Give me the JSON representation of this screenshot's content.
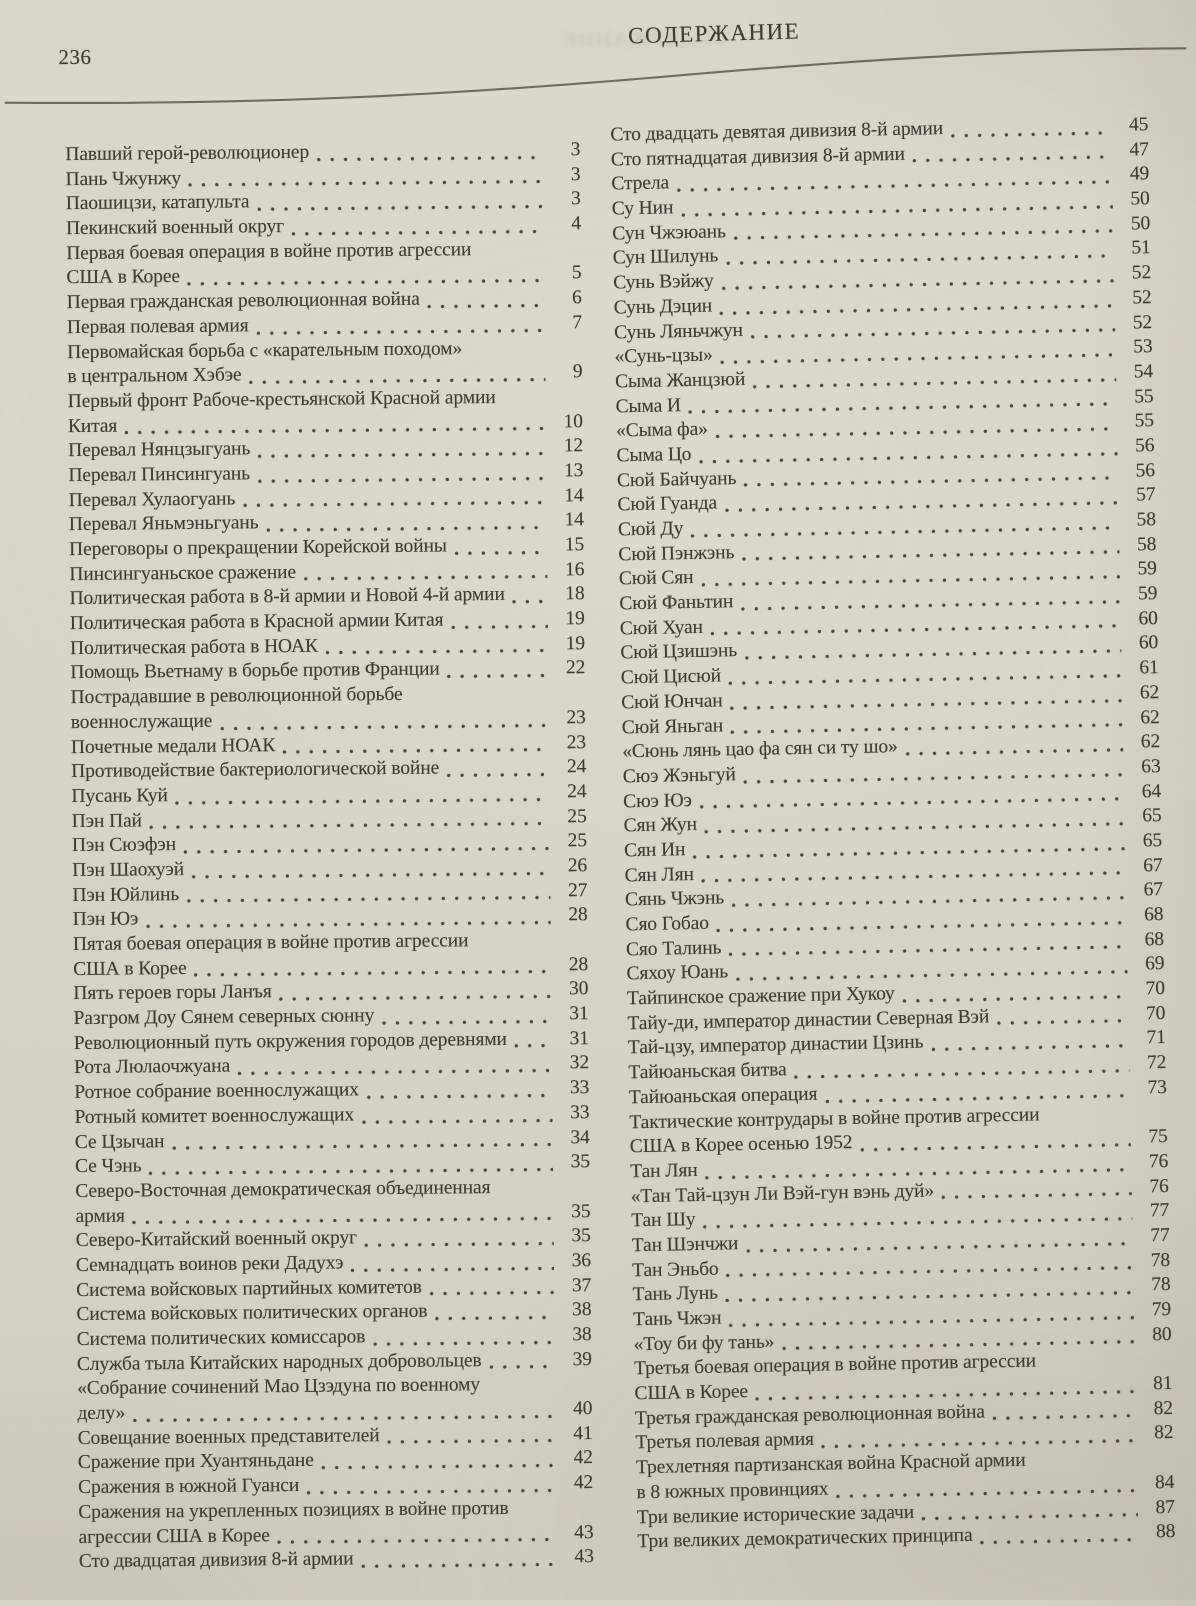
{
  "page": {
    "number": "236",
    "title": "СОДЕРЖАНИЕ"
  },
  "toc": {
    "left": [
      {
        "lines": [
          "Павший герой-революционер"
        ],
        "p": "3"
      },
      {
        "lines": [
          "Пань Чжунжу"
        ],
        "p": "3"
      },
      {
        "lines": [
          "Паошицзи, катапульта"
        ],
        "p": "3"
      },
      {
        "lines": [
          "Пекинский военный округ"
        ],
        "p": "4"
      },
      {
        "lines": [
          "Первая боевая операция в войне против агрессии",
          "США в Корее"
        ],
        "p": "5"
      },
      {
        "lines": [
          "Первая гражданская революционная война"
        ],
        "p": "6"
      },
      {
        "lines": [
          "Первая полевая армия"
        ],
        "p": "7"
      },
      {
        "lines": [
          "Первомайская борьба с «карательным походом»",
          "в центральном Хэбэе"
        ],
        "p": "9"
      },
      {
        "lines": [
          "Первый фронт Рабоче-крестьянской Красной армии",
          "Китая"
        ],
        "p": "10"
      },
      {
        "lines": [
          "Перевал Нянцзыгуань"
        ],
        "p": "12"
      },
      {
        "lines": [
          "Перевал Пинсингуань"
        ],
        "p": "13"
      },
      {
        "lines": [
          "Перевал Хулаогуань"
        ],
        "p": "14"
      },
      {
        "lines": [
          "Перевал Яньмэньгуань"
        ],
        "p": "14"
      },
      {
        "lines": [
          "Переговоры о прекращении Корейской войны"
        ],
        "p": "15"
      },
      {
        "lines": [
          "Пинсингуаньское сражение"
        ],
        "p": "16"
      },
      {
        "lines": [
          "Политическая работа в 8-й армии и Новой 4-й армии"
        ],
        "p": "18"
      },
      {
        "lines": [
          "Политическая работа в Красной армии Китая"
        ],
        "p": "19"
      },
      {
        "lines": [
          "Политическая работа в НОАК"
        ],
        "p": "19"
      },
      {
        "lines": [
          "Помощь Вьетнаму в борьбе против Франции"
        ],
        "p": "22"
      },
      {
        "lines": [
          "Пострадавшие в революционной борьбе",
          "военнослужащие"
        ],
        "p": "23"
      },
      {
        "lines": [
          "Почетные медали НОАК"
        ],
        "p": "23"
      },
      {
        "lines": [
          "Противодействие бактериологической войне"
        ],
        "p": "24"
      },
      {
        "lines": [
          "Пусань Куй"
        ],
        "p": "24"
      },
      {
        "lines": [
          "Пэн Пай"
        ],
        "p": "25"
      },
      {
        "lines": [
          "Пэн Сюэфэн"
        ],
        "p": "25"
      },
      {
        "lines": [
          "Пэн Шаохуэй"
        ],
        "p": "26"
      },
      {
        "lines": [
          "Пэн Юйлинь"
        ],
        "p": "27"
      },
      {
        "lines": [
          "Пэн Юэ"
        ],
        "p": "28"
      },
      {
        "lines": [
          "Пятая боевая операция в войне против агрессии",
          "США в Корее"
        ],
        "p": "28"
      },
      {
        "lines": [
          "Пять героев горы Ланъя"
        ],
        "p": "30"
      },
      {
        "lines": [
          "Разгром Доу Сянем северных сюнну"
        ],
        "p": "31"
      },
      {
        "lines": [
          "Революционный путь окружения городов деревнями"
        ],
        "p": "31"
      },
      {
        "lines": [
          "Рота Люлаочжуана"
        ],
        "p": "32"
      },
      {
        "lines": [
          "Ротное собрание военнослужащих"
        ],
        "p": "33"
      },
      {
        "lines": [
          "Ротный комитет военнослужащих"
        ],
        "p": "33"
      },
      {
        "lines": [
          "Се Цзычан"
        ],
        "p": "34"
      },
      {
        "lines": [
          "Се Чэнь"
        ],
        "p": "35"
      },
      {
        "lines": [
          "Северо-Восточная демократическая объединенная",
          "армия"
        ],
        "p": "35"
      },
      {
        "lines": [
          "Северо-Китайский военный округ"
        ],
        "p": "35"
      },
      {
        "lines": [
          "Семнадцать воинов реки Дадухэ"
        ],
        "p": "36"
      },
      {
        "lines": [
          "Система войсковых партийных комитетов"
        ],
        "p": "37"
      },
      {
        "lines": [
          "Система войсковых политических органов"
        ],
        "p": "38"
      },
      {
        "lines": [
          "Система политических комиссаров"
        ],
        "p": "38"
      },
      {
        "lines": [
          "Служба тыла Китайских народных добровольцев"
        ],
        "p": "39"
      },
      {
        "lines": [
          "«Собрание сочинений Мао Цзэдуна по военному",
          "делу»"
        ],
        "p": "40"
      },
      {
        "lines": [
          "Совещание военных представителей"
        ],
        "p": "41"
      },
      {
        "lines": [
          "Сражение при Хуантяньдане"
        ],
        "p": "42"
      },
      {
        "lines": [
          "Сражения в южной Гуанси"
        ],
        "p": "42"
      },
      {
        "lines": [
          "Сражения на укрепленных позициях в войне против",
          "агрессии США в Корее"
        ],
        "p": "43"
      },
      {
        "lines": [
          "Сто двадцатая дивизия 8-й армии"
        ],
        "p": "43"
      }
    ],
    "right": [
      {
        "lines": [
          "Сто двадцать девятая дивизия 8-й армии"
        ],
        "p": "45"
      },
      {
        "lines": [
          "Сто пятнадцатая дивизия 8-й армии"
        ],
        "p": "47"
      },
      {
        "lines": [
          "Стрела"
        ],
        "p": "49"
      },
      {
        "lines": [
          "Су Нин"
        ],
        "p": "50"
      },
      {
        "lines": [
          "Сун Чжэюань"
        ],
        "p": "50"
      },
      {
        "lines": [
          "Сун Шилунь"
        ],
        "p": "51"
      },
      {
        "lines": [
          "Сунь Вэйжу"
        ],
        "p": "52"
      },
      {
        "lines": [
          "Сунь Дэцин"
        ],
        "p": "52"
      },
      {
        "lines": [
          "Сунь Ляньчжун"
        ],
        "p": "52"
      },
      {
        "lines": [
          "«Сунь-цзы»"
        ],
        "p": "53"
      },
      {
        "lines": [
          "Сыма Жанцзюй"
        ],
        "p": "54"
      },
      {
        "lines": [
          "Сыма И"
        ],
        "p": "55"
      },
      {
        "lines": [
          "«Сыма фа»"
        ],
        "p": "55"
      },
      {
        "lines": [
          "Сыма Цо"
        ],
        "p": "56"
      },
      {
        "lines": [
          "Сюй Байчуань"
        ],
        "p": "56"
      },
      {
        "lines": [
          "Сюй Гуанда"
        ],
        "p": "57"
      },
      {
        "lines": [
          "Сюй Ду"
        ],
        "p": "58"
      },
      {
        "lines": [
          "Сюй Пэнжэнь"
        ],
        "p": "58"
      },
      {
        "lines": [
          "Сюй Сян"
        ],
        "p": "59"
      },
      {
        "lines": [
          "Сюй Фаньтин"
        ],
        "p": "59"
      },
      {
        "lines": [
          "Сюй Хуан"
        ],
        "p": "60"
      },
      {
        "lines": [
          "Сюй Цзишэнь"
        ],
        "p": "60"
      },
      {
        "lines": [
          "Сюй Цисюй"
        ],
        "p": "61"
      },
      {
        "lines": [
          "Сюй Юнчан"
        ],
        "p": "62"
      },
      {
        "lines": [
          "Сюй Яньган"
        ],
        "p": "62"
      },
      {
        "lines": [
          "«Сюнь лянь цао фа сян си ту шо»"
        ],
        "p": "62"
      },
      {
        "lines": [
          "Сюэ Жэньгуй"
        ],
        "p": "63"
      },
      {
        "lines": [
          "Сюэ Юэ"
        ],
        "p": "64"
      },
      {
        "lines": [
          "Сян Жун"
        ],
        "p": "65"
      },
      {
        "lines": [
          "Сян Ин"
        ],
        "p": "65"
      },
      {
        "lines": [
          "Сян Лян"
        ],
        "p": "67"
      },
      {
        "lines": [
          "Сянь Чжэнь"
        ],
        "p": "67"
      },
      {
        "lines": [
          "Сяо Гобао"
        ],
        "p": "68"
      },
      {
        "lines": [
          "Сяо Талинь"
        ],
        "p": "68"
      },
      {
        "lines": [
          "Сяхоу Юань"
        ],
        "p": "69"
      },
      {
        "lines": [
          "Тайпинское сражение при Хукоу"
        ],
        "p": "70"
      },
      {
        "lines": [
          "Тайу-ди, император династии Северная Вэй"
        ],
        "p": "70"
      },
      {
        "lines": [
          "Тай-цзу, император династии Цзинь"
        ],
        "p": "71"
      },
      {
        "lines": [
          "Тайюаньская битва"
        ],
        "p": "72"
      },
      {
        "lines": [
          "Тайюаньская операция"
        ],
        "p": "73"
      },
      {
        "lines": [
          "Тактические контрудары в войне против агрессии",
          "США в Корее осенью 1952"
        ],
        "p": "75"
      },
      {
        "lines": [
          "Тан Лян"
        ],
        "p": "76"
      },
      {
        "lines": [
          "«Тан Тай-цзун Ли Вэй-гун вэнь дуй»"
        ],
        "p": "76"
      },
      {
        "lines": [
          "Тан Шу"
        ],
        "p": "77"
      },
      {
        "lines": [
          "Тан Шэнчжи"
        ],
        "p": "77"
      },
      {
        "lines": [
          "Тан Эньбо"
        ],
        "p": "78"
      },
      {
        "lines": [
          "Тань Лунь"
        ],
        "p": "78"
      },
      {
        "lines": [
          "Тань Чжэн"
        ],
        "p": "79"
      },
      {
        "lines": [
          "«Тоу би фу тань»"
        ],
        "p": "80"
      },
      {
        "lines": [
          "Третья боевая операция в войне против агрессии",
          "США в Корее"
        ],
        "p": "81"
      },
      {
        "lines": [
          "Третья гражданская революционная война"
        ],
        "p": "82"
      },
      {
        "lines": [
          "Третья полевая армия"
        ],
        "p": "82"
      },
      {
        "lines": [
          "Трехлетняя партизанская война Красной армии",
          "в 8 южных провинциях"
        ],
        "p": "84"
      },
      {
        "lines": [
          "Три великие исторические задачи"
        ],
        "p": "87"
      },
      {
        "lines": [
          "Три великих демократических принципа"
        ],
        "p": "88"
      }
    ]
  }
}
